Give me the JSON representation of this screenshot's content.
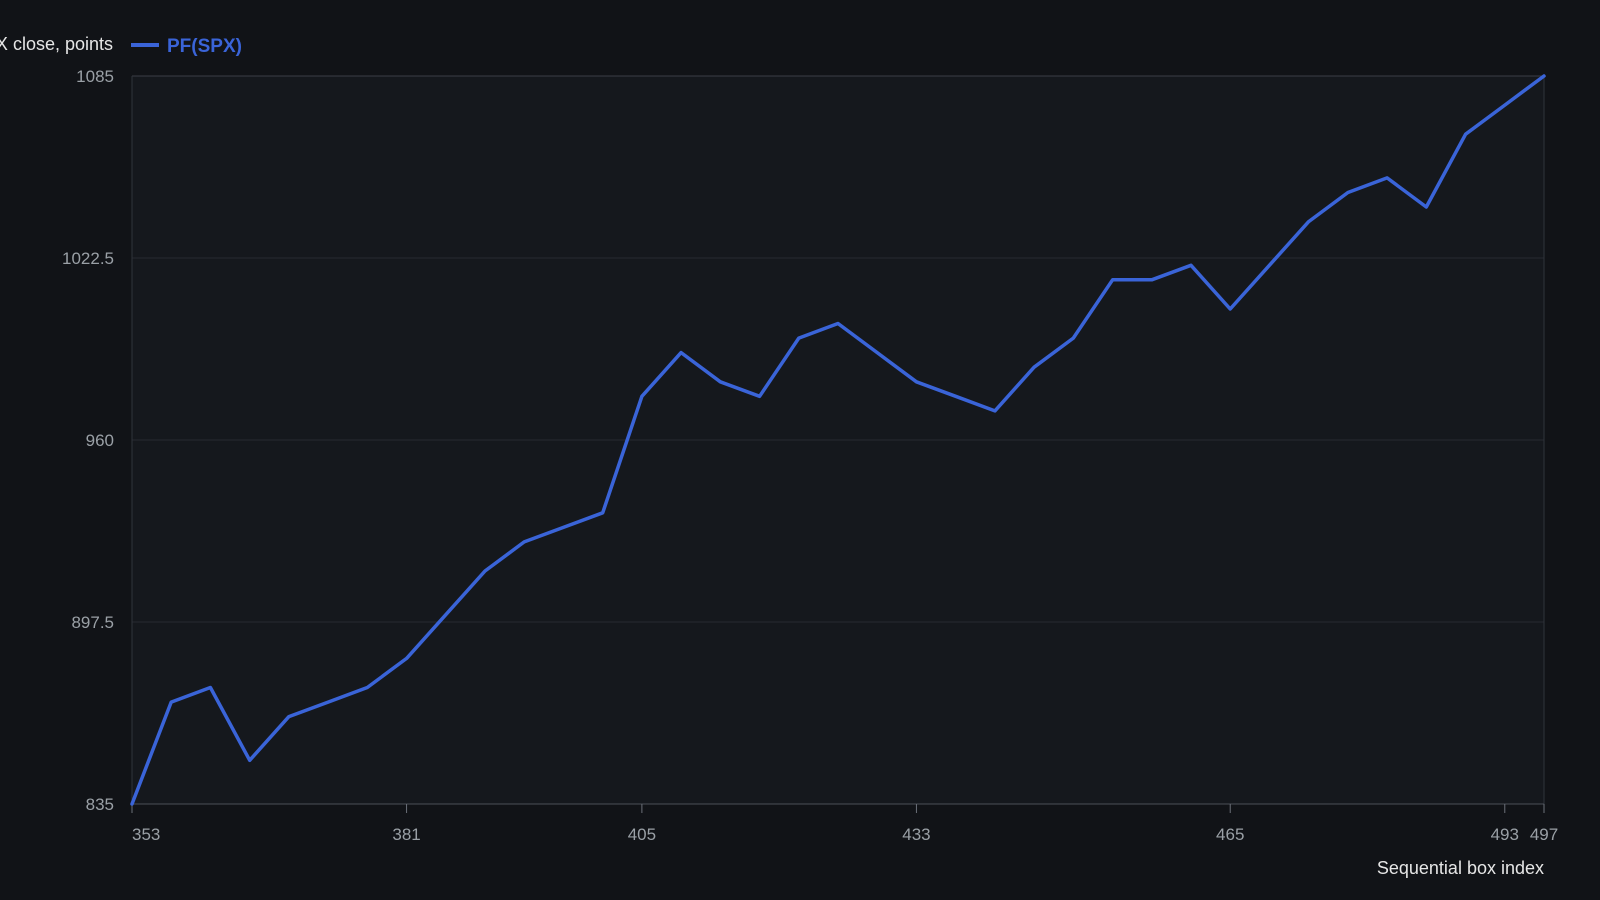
{
  "chart_data": {
    "type": "line",
    "title": "",
    "ylabel": "SPX close, points",
    "xlabel": "Sequential box index",
    "xlim": [
      353,
      497
    ],
    "ylim": [
      835,
      1085
    ],
    "grid": true,
    "legend_position": "top-left",
    "x_ticks": [
      353,
      381,
      405,
      433,
      465,
      493,
      497
    ],
    "y_ticks": [
      835,
      897.5,
      960,
      1022.5,
      1085
    ],
    "series": [
      {
        "name": "PF(SPX)",
        "color": "#3a64d8",
        "x": [
          353,
          357,
          361,
          365,
          369,
          373,
          377,
          381,
          385,
          389,
          393,
          397,
          401,
          405,
          409,
          413,
          417,
          421,
          425,
          429,
          433,
          437,
          441,
          445,
          449,
          453,
          457,
          461,
          465,
          469,
          473,
          477,
          481,
          485,
          489,
          493,
          497
        ],
        "values": [
          835,
          870,
          875,
          850,
          865,
          870,
          875,
          885,
          900,
          915,
          925,
          930,
          935,
          975,
          990,
          980,
          975,
          995,
          1000,
          990,
          980,
          975,
          970,
          985,
          995,
          1015,
          1015,
          1020,
          1005,
          1020,
          1035,
          1045,
          1050,
          1040,
          1065,
          1075,
          1085
        ]
      }
    ]
  }
}
